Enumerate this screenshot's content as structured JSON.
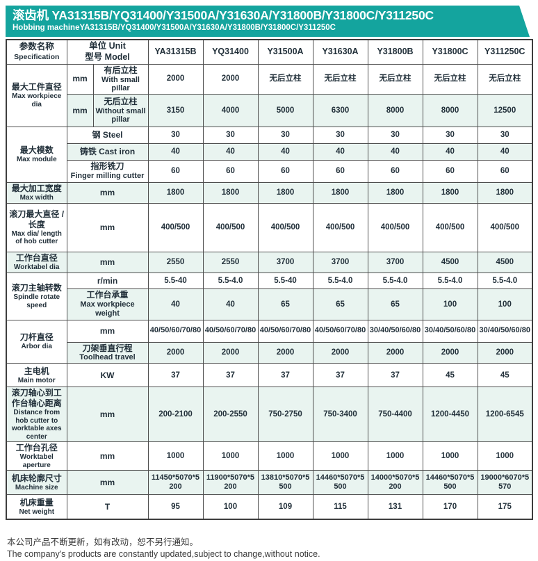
{
  "banner": {
    "title_zh": "滚齿机 YA31315B/YQ31400/Y31500A/Y31630A/Y31800B/Y31800C/Y311250C",
    "subtitle_en": "Hobbing machineYA31315B/YQ31400/Y31500A/Y31630A/Y31800B/Y31800C/Y311250C"
  },
  "table": {
    "header": {
      "col1_zh": "参数名称",
      "col1_en": "Specification",
      "col2_line1": "单位 Unit",
      "col2_line2": "型号 Model",
      "models": [
        "YA31315B",
        "YQ31400",
        "Y31500A",
        "Y31630A",
        "Y31800B",
        "Y31800C",
        "Y311250C"
      ]
    },
    "groups": [
      {
        "label_zh": "最大工件直径",
        "label_en": "Max workpiece dia",
        "rows": [
          {
            "unit": "mm",
            "desc_zh": "有后立柱",
            "desc_en": "With small pillar",
            "shaded": false,
            "values": [
              "2000",
              "2000",
              "无后立柱",
              "无后立柱",
              "无后立柱",
              "无后立柱",
              "无后立柱"
            ]
          },
          {
            "unit": "mm",
            "desc_zh": "无后立柱",
            "desc_en": "Without small pillar",
            "shaded": true,
            "values": [
              "3150",
              "4000",
              "5000",
              "6300",
              "8000",
              "8000",
              "12500"
            ]
          }
        ]
      },
      {
        "label_zh": "最大模数",
        "label_en": "Max module",
        "rows": [
          {
            "unit_zh": "钢 Steel",
            "shaded": false,
            "values": [
              "30",
              "30",
              "30",
              "30",
              "30",
              "30",
              "30"
            ]
          },
          {
            "unit_zh": "铸铁 Cast iron",
            "shaded": true,
            "values": [
              "40",
              "40",
              "40",
              "40",
              "40",
              "40",
              "40"
            ]
          },
          {
            "unit_zh": "指形铣刀",
            "unit_en": "Finger milling cutter",
            "shaded": false,
            "values": [
              "60",
              "60",
              "60",
              "60",
              "60",
              "60",
              "60"
            ]
          }
        ]
      },
      {
        "label_zh": "最大加工宽度",
        "label_en": "Max width",
        "rows": [
          {
            "unit_zh": "mm",
            "shaded": true,
            "values": [
              "1800",
              "1800",
              "1800",
              "1800",
              "1800",
              "1800",
              "1800"
            ]
          }
        ]
      },
      {
        "label_zh": "滚刀最大直径 / 长度",
        "label_en": "Max dia/ length of hob cutter",
        "rows": [
          {
            "unit_zh": "mm",
            "shaded": false,
            "values": [
              "400/500",
              "400/500",
              "400/500",
              "400/500",
              "400/500",
              "400/500",
              "400/500"
            ]
          }
        ]
      },
      {
        "label_zh": "工作台直径",
        "label_en": "Worktabel dia",
        "rows": [
          {
            "unit_zh": "mm",
            "shaded": true,
            "values": [
              "2550",
              "2550",
              "3700",
              "3700",
              "3700",
              "4500",
              "4500"
            ]
          }
        ]
      },
      {
        "label_zh": "滚刀主轴转数",
        "label_en": "Spindle rotate speed",
        "rows": [
          {
            "unit_zh": "r/min",
            "shaded": false,
            "values": [
              "5.5-40",
              "5.5-4.0",
              "5.5-40",
              "5.5-4.0",
              "5.5-4.0",
              "5.5-4.0",
              "5.5-4.0"
            ]
          },
          {
            "unit_zh": "工作台承重",
            "unit_en": "Max workpiece weight",
            "shaded": true,
            "values": [
              "40",
              "40",
              "65",
              "65",
              "65",
              "100",
              "100"
            ]
          }
        ]
      },
      {
        "label_zh": "刀杆直径",
        "label_en": "Arbor dia",
        "rows": [
          {
            "unit_zh": "mm",
            "shaded": false,
            "values": [
              "40/50/60/70/80",
              "40/50/60/70/80",
              "40/50/60/70/80",
              "40/50/60/70/80",
              "30/40/50/60/80",
              "30/40/50/60/80",
              "30/40/50/60/80"
            ]
          },
          {
            "unit_zh": "刀架垂直行程",
            "unit_en": "Toolhead travel",
            "shaded": true,
            "values": [
              "2000",
              "2000",
              "2000",
              "2000",
              "2000",
              "2000",
              "2000"
            ]
          }
        ]
      },
      {
        "label_zh": "主电机",
        "label_en": "Main motor",
        "rows": [
          {
            "unit_zh": "KW",
            "shaded": false,
            "values": [
              "37",
              "37",
              "37",
              "37",
              "37",
              "45",
              "45"
            ]
          }
        ]
      },
      {
        "label_zh": "滚刀轴心到工作台轴心距离",
        "label_en": "Distance from hob cutter to worktable axes center",
        "rows": [
          {
            "unit_zh": "mm",
            "shaded": true,
            "values": [
              "200-2100",
              "200-2550",
              "750-2750",
              "750-3400",
              "750-4400",
              "1200-4450",
              "1200-6545"
            ]
          }
        ]
      },
      {
        "label_zh": "工作台孔径",
        "label_en": "Worktabel aperture",
        "rows": [
          {
            "unit_zh": "mm",
            "shaded": false,
            "values": [
              "1000",
              "1000",
              "1000",
              "1000",
              "1000",
              "1000",
              "1000"
            ]
          }
        ]
      },
      {
        "label_zh": "机床轮廓尺寸",
        "label_en": "Machine size",
        "rows": [
          {
            "unit_zh": "mm",
            "shaded": true,
            "values": [
              "11450*5070*5200",
              "11900*5070*5200",
              "13810*5070*5500",
              "14460*5070*5500",
              "14000*5070*5200",
              "14460*5070*5500",
              "19000*6070*5570"
            ]
          }
        ]
      },
      {
        "label_zh": "机床重量",
        "label_en": "Net weight",
        "rows": [
          {
            "unit_zh": "T",
            "shaded": false,
            "values": [
              "95",
              "100",
              "109",
              "115",
              "131",
              "170",
              "175"
            ]
          }
        ]
      }
    ]
  },
  "footer": {
    "line_zh": "本公司产品不断更新，如有改动，恕不另行通知。",
    "line_en": "The company's products are constantly updated,subject to change,without notice."
  },
  "colors": {
    "banner_teal": "#14A49E",
    "header_bg": "#CEE5DE",
    "row_shade": "#E9F4F0",
    "border": "#4E4E4E"
  }
}
